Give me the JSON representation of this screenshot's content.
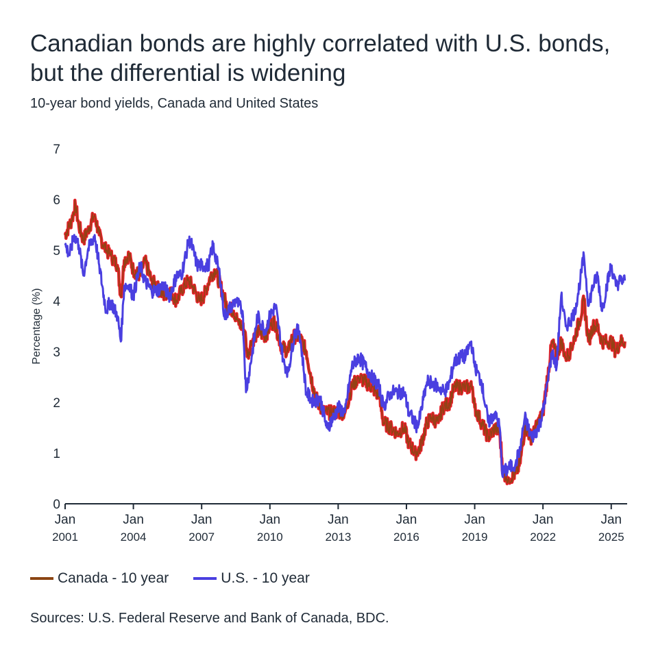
{
  "title_line1": "Canadian bonds are highly correlated with U.S. bonds,",
  "title_line2": "but the differential is widening",
  "subtitle": "10-year bond yields, Canada and United States",
  "source": "Sources: U.S. Federal Reserve and Bank of Canada, BDC.",
  "colors": {
    "canada": "#8B4513",
    "canada_highlight": "#e8202a",
    "us": "#4a3fe0",
    "axis": "#1f2a36"
  },
  "chart_data": {
    "type": "line",
    "ylabel": "Percentage (%)",
    "ylim": [
      0,
      7
    ],
    "yticks": [
      0,
      1,
      2,
      3,
      4,
      5,
      6,
      7
    ],
    "xlim": [
      2001.0,
      2025.7
    ],
    "xticks": [
      {
        "value": 2001,
        "line1": "Jan",
        "line2": "2001"
      },
      {
        "value": 2004,
        "line1": "Jan",
        "line2": "2004"
      },
      {
        "value": 2007,
        "line1": "Jan",
        "line2": "2007"
      },
      {
        "value": 2010,
        "line1": "Jan",
        "line2": "2010"
      },
      {
        "value": 2013,
        "line1": "Jan",
        "line2": "2013"
      },
      {
        "value": 2016,
        "line1": "Jan",
        "line2": "2016"
      },
      {
        "value": 2019,
        "line1": "Jan",
        "line2": "2019"
      },
      {
        "value": 2022,
        "line1": "Jan",
        "line2": "2022"
      },
      {
        "value": 2025,
        "line1": "Jan",
        "line2": "2025"
      }
    ],
    "legend_position": "bottom-left",
    "series": [
      {
        "name": "Canada - 10 year",
        "color": "#8B4513",
        "points": [
          [
            2001.0,
            5.3
          ],
          [
            2001.3,
            5.6
          ],
          [
            2001.45,
            5.9
          ],
          [
            2001.6,
            5.5
          ],
          [
            2001.8,
            5.2
          ],
          [
            2002.0,
            5.4
          ],
          [
            2002.3,
            5.7
          ],
          [
            2002.5,
            5.3
          ],
          [
            2002.8,
            5.0
          ],
          [
            2003.0,
            4.9
          ],
          [
            2003.3,
            4.7
          ],
          [
            2003.45,
            4.1
          ],
          [
            2003.6,
            4.8
          ],
          [
            2003.8,
            4.9
          ],
          [
            2004.0,
            4.6
          ],
          [
            2004.3,
            4.5
          ],
          [
            2004.5,
            4.8
          ],
          [
            2004.8,
            4.4
          ],
          [
            2005.0,
            4.3
          ],
          [
            2005.3,
            4.1
          ],
          [
            2005.6,
            4.2
          ],
          [
            2005.9,
            4.0
          ],
          [
            2006.1,
            4.2
          ],
          [
            2006.4,
            4.4
          ],
          [
            2006.6,
            4.3
          ],
          [
            2006.9,
            4.0
          ],
          [
            2007.1,
            4.1
          ],
          [
            2007.4,
            4.5
          ],
          [
            2007.6,
            4.6
          ],
          [
            2007.9,
            4.2
          ],
          [
            2008.1,
            3.9
          ],
          [
            2008.4,
            3.8
          ],
          [
            2008.6,
            3.6
          ],
          [
            2008.9,
            3.4
          ],
          [
            2009.0,
            2.9
          ],
          [
            2009.2,
            3.2
          ],
          [
            2009.5,
            3.4
          ],
          [
            2009.8,
            3.3
          ],
          [
            2010.0,
            3.5
          ],
          [
            2010.2,
            3.6
          ],
          [
            2010.5,
            3.1
          ],
          [
            2010.8,
            3.0
          ],
          [
            2011.0,
            3.3
          ],
          [
            2011.3,
            3.3
          ],
          [
            2011.6,
            3.0
          ],
          [
            2011.9,
            2.3
          ],
          [
            2012.1,
            2.0
          ],
          [
            2012.4,
            1.8
          ],
          [
            2012.7,
            1.8
          ],
          [
            2013.0,
            1.8
          ],
          [
            2013.3,
            1.8
          ],
          [
            2013.6,
            2.3
          ],
          [
            2013.9,
            2.5
          ],
          [
            2014.2,
            2.4
          ],
          [
            2014.5,
            2.3
          ],
          [
            2014.8,
            2.1
          ],
          [
            2015.0,
            1.6
          ],
          [
            2015.3,
            1.5
          ],
          [
            2015.6,
            1.4
          ],
          [
            2015.9,
            1.5
          ],
          [
            2016.1,
            1.2
          ],
          [
            2016.4,
            1.0
          ],
          [
            2016.6,
            1.1
          ],
          [
            2016.9,
            1.6
          ],
          [
            2017.1,
            1.7
          ],
          [
            2017.4,
            1.6
          ],
          [
            2017.6,
            1.9
          ],
          [
            2017.9,
            2.0
          ],
          [
            2018.1,
            2.3
          ],
          [
            2018.4,
            2.3
          ],
          [
            2018.6,
            2.3
          ],
          [
            2018.9,
            2.3
          ],
          [
            2019.0,
            1.9
          ],
          [
            2019.3,
            1.6
          ],
          [
            2019.6,
            1.3
          ],
          [
            2019.9,
            1.5
          ],
          [
            2020.1,
            1.4
          ],
          [
            2020.25,
            0.6
          ],
          [
            2020.5,
            0.5
          ],
          [
            2020.8,
            0.6
          ],
          [
            2021.0,
            0.8
          ],
          [
            2021.2,
            1.5
          ],
          [
            2021.5,
            1.3
          ],
          [
            2021.8,
            1.6
          ],
          [
            2022.0,
            1.8
          ],
          [
            2022.2,
            2.5
          ],
          [
            2022.4,
            3.2
          ],
          [
            2022.6,
            2.9
          ],
          [
            2022.8,
            3.2
          ],
          [
            2023.0,
            2.9
          ],
          [
            2023.2,
            3.0
          ],
          [
            2023.4,
            3.3
          ],
          [
            2023.6,
            3.6
          ],
          [
            2023.8,
            4.0
          ],
          [
            2024.0,
            3.2
          ],
          [
            2024.2,
            3.5
          ],
          [
            2024.4,
            3.5
          ],
          [
            2024.6,
            3.2
          ],
          [
            2024.8,
            3.2
          ],
          [
            2025.0,
            3.2
          ],
          [
            2025.2,
            3.0
          ],
          [
            2025.4,
            3.2
          ],
          [
            2025.6,
            3.2
          ]
        ]
      },
      {
        "name": "U.S. - 10 year",
        "color": "#4a3fe0",
        "points": [
          [
            2001.0,
            5.1
          ],
          [
            2001.2,
            4.9
          ],
          [
            2001.4,
            5.3
          ],
          [
            2001.6,
            5.1
          ],
          [
            2001.8,
            4.5
          ],
          [
            2002.0,
            5.0
          ],
          [
            2002.3,
            5.3
          ],
          [
            2002.5,
            4.7
          ],
          [
            2002.8,
            3.8
          ],
          [
            2003.0,
            4.0
          ],
          [
            2003.3,
            3.7
          ],
          [
            2003.45,
            3.2
          ],
          [
            2003.6,
            4.3
          ],
          [
            2003.8,
            4.3
          ],
          [
            2004.0,
            4.1
          ],
          [
            2004.3,
            4.7
          ],
          [
            2004.5,
            4.4
          ],
          [
            2004.8,
            4.2
          ],
          [
            2005.0,
            4.2
          ],
          [
            2005.3,
            4.3
          ],
          [
            2005.6,
            4.1
          ],
          [
            2005.9,
            4.5
          ],
          [
            2006.1,
            4.5
          ],
          [
            2006.4,
            5.1
          ],
          [
            2006.5,
            5.2
          ],
          [
            2006.8,
            4.7
          ],
          [
            2007.0,
            4.7
          ],
          [
            2007.3,
            4.7
          ],
          [
            2007.5,
            5.1
          ],
          [
            2007.8,
            4.5
          ],
          [
            2008.0,
            3.7
          ],
          [
            2008.3,
            3.9
          ],
          [
            2008.5,
            4.0
          ],
          [
            2008.8,
            3.8
          ],
          [
            2008.95,
            2.2
          ],
          [
            2009.2,
            2.9
          ],
          [
            2009.45,
            3.7
          ],
          [
            2009.8,
            3.4
          ],
          [
            2010.0,
            3.7
          ],
          [
            2010.25,
            3.9
          ],
          [
            2010.6,
            2.8
          ],
          [
            2010.8,
            2.6
          ],
          [
            2011.1,
            3.4
          ],
          [
            2011.3,
            3.4
          ],
          [
            2011.6,
            2.2
          ],
          [
            2011.9,
            2.0
          ],
          [
            2012.2,
            2.1
          ],
          [
            2012.5,
            1.5
          ],
          [
            2012.8,
            1.7
          ],
          [
            2013.0,
            1.9
          ],
          [
            2013.3,
            1.8
          ],
          [
            2013.6,
            2.7
          ],
          [
            2013.9,
            2.9
          ],
          [
            2014.2,
            2.7
          ],
          [
            2014.5,
            2.5
          ],
          [
            2014.8,
            2.3
          ],
          [
            2015.0,
            1.9
          ],
          [
            2015.3,
            2.2
          ],
          [
            2015.6,
            2.2
          ],
          [
            2015.9,
            2.2
          ],
          [
            2016.1,
            1.8
          ],
          [
            2016.5,
            1.5
          ],
          [
            2016.9,
            2.4
          ],
          [
            2017.1,
            2.4
          ],
          [
            2017.4,
            2.3
          ],
          [
            2017.7,
            2.2
          ],
          [
            2017.9,
            2.4
          ],
          [
            2018.1,
            2.8
          ],
          [
            2018.4,
            2.9
          ],
          [
            2018.6,
            2.9
          ],
          [
            2018.85,
            3.2
          ],
          [
            2019.0,
            2.7
          ],
          [
            2019.3,
            2.4
          ],
          [
            2019.6,
            1.6
          ],
          [
            2019.9,
            1.8
          ],
          [
            2020.1,
            1.5
          ],
          [
            2020.2,
            0.6
          ],
          [
            2020.5,
            0.7
          ],
          [
            2020.8,
            0.8
          ],
          [
            2021.0,
            1.1
          ],
          [
            2021.2,
            1.7
          ],
          [
            2021.5,
            1.3
          ],
          [
            2021.8,
            1.5
          ],
          [
            2022.0,
            1.8
          ],
          [
            2022.2,
            2.4
          ],
          [
            2022.4,
            3.0
          ],
          [
            2022.6,
            2.7
          ],
          [
            2022.8,
            4.1
          ],
          [
            2023.0,
            3.5
          ],
          [
            2023.2,
            3.6
          ],
          [
            2023.4,
            3.8
          ],
          [
            2023.6,
            4.3
          ],
          [
            2023.8,
            4.9
          ],
          [
            2024.0,
            3.9
          ],
          [
            2024.2,
            4.3
          ],
          [
            2024.4,
            4.5
          ],
          [
            2024.6,
            3.8
          ],
          [
            2024.8,
            4.3
          ],
          [
            2025.0,
            4.7
          ],
          [
            2025.2,
            4.3
          ],
          [
            2025.4,
            4.4
          ],
          [
            2025.6,
            4.4
          ]
        ]
      }
    ]
  }
}
